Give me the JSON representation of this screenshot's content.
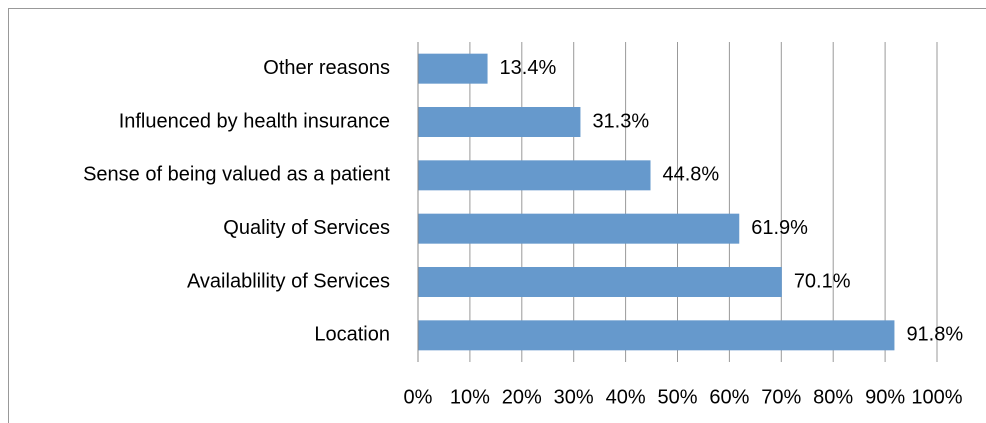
{
  "chart_data": {
    "type": "bar",
    "orientation": "horizontal",
    "categories": [
      "Other reasons",
      "Influenced by health insurance",
      "Sense of being valued as a patient",
      "Quality of Services",
      "Availablility of Services",
      "Location"
    ],
    "values": [
      13.4,
      31.3,
      44.8,
      61.9,
      70.1,
      91.8
    ],
    "value_labels": [
      "13.4%",
      "31.3%",
      "44.8%",
      "61.9%",
      "70.1%",
      "91.8%"
    ],
    "color": "#6699cc",
    "xlim": [
      0,
      100
    ],
    "xticks": [
      {
        "value": 0,
        "label": "0%"
      },
      {
        "value": 10,
        "label": "10%"
      },
      {
        "value": 20,
        "label": "20%"
      },
      {
        "value": 30,
        "label": "30%"
      },
      {
        "value": 40,
        "label": "40%"
      },
      {
        "value": 50,
        "label": "50%"
      },
      {
        "value": 60,
        "label": "60%"
      },
      {
        "value": 70,
        "label": "70%"
      },
      {
        "value": 80,
        "label": "80%"
      },
      {
        "value": 90,
        "label": "90%"
      },
      {
        "value": 100,
        "label": "100%"
      }
    ],
    "grid": true
  }
}
